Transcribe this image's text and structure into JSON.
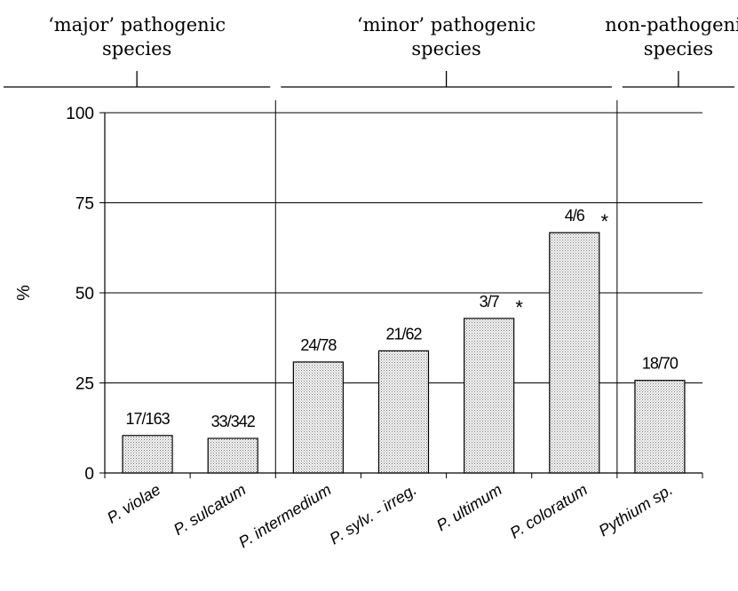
{
  "chart_data": {
    "type": "bar",
    "ylabel": "%",
    "ylim": [
      0,
      100
    ],
    "yticks": [
      0,
      25,
      50,
      75,
      100
    ],
    "grid": true,
    "categories": [
      "P. violae",
      "P. sulcatum",
      "P. intermedium",
      "P. sylv. - irreg.",
      "P. ultimum",
      "P. coloratum",
      "Pythium sp."
    ],
    "values": [
      10.4,
      9.6,
      30.8,
      33.9,
      42.9,
      66.7,
      25.7
    ],
    "data_labels": [
      "17/163",
      "33/342",
      "24/78",
      "21/62",
      "3/7",
      "4/6",
      "18/70"
    ],
    "significant": [
      false,
      false,
      false,
      false,
      true,
      true,
      false
    ],
    "significance_marker": "*",
    "groups": [
      {
        "line1": "‘major’ pathogenic",
        "line2": "species",
        "first": 0,
        "last": 1
      },
      {
        "line1": "‘minor’ pathogenic",
        "line2": "species",
        "first": 2,
        "last": 5
      },
      {
        "line1": "non-pathogenic",
        "line2": "species",
        "first": 6,
        "last": 6
      }
    ],
    "bar_pattern": "dotted",
    "colors": {
      "bar_fill": "#ffffff",
      "bar_dot": "#6a6a6a",
      "line": "#000000"
    }
  }
}
